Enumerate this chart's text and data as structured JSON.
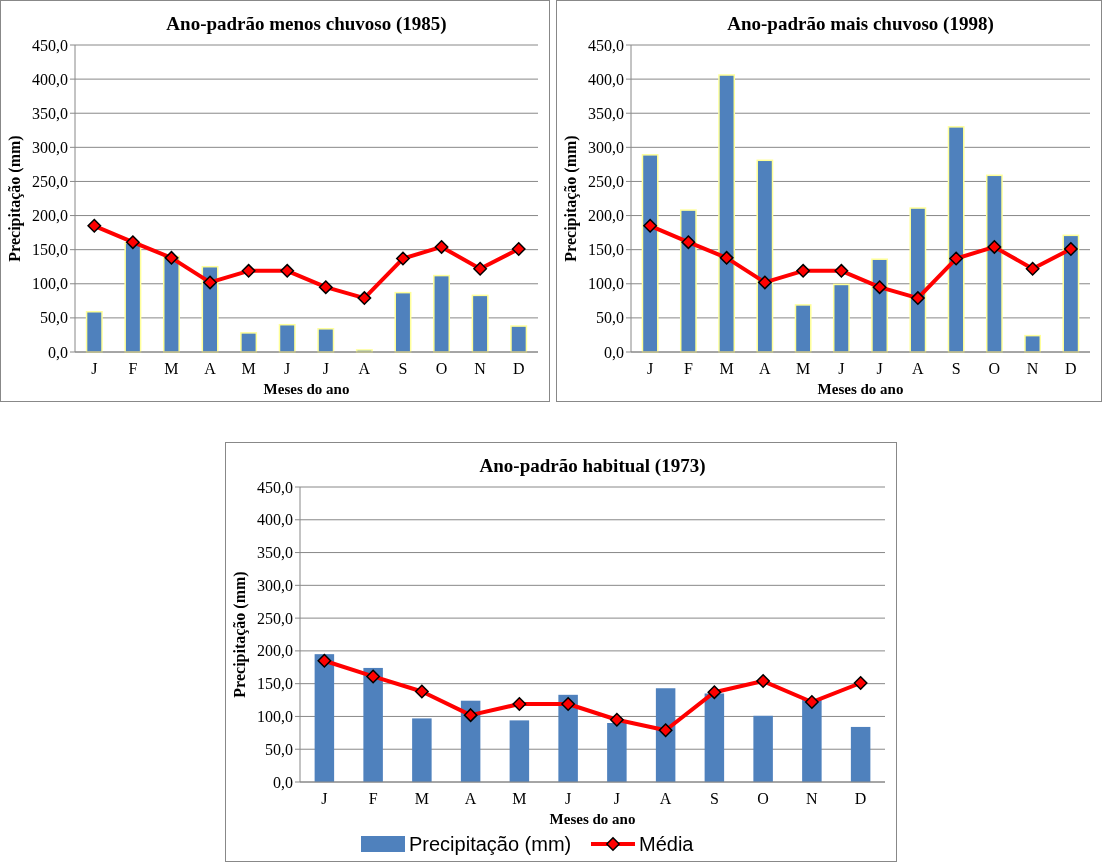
{
  "chart_data": [
    {
      "type": "bar",
      "title": "Ano-padrão menos chuvoso (1985)",
      "xlabel": "Meses do ano",
      "ylabel": "Precipitação (mm)",
      "categories": [
        "J",
        "F",
        "M",
        "A",
        "M",
        "J",
        "J",
        "A",
        "S",
        "O",
        "N",
        "D"
      ],
      "ylim": [
        0,
        450
      ],
      "yticks": [
        {
          "value": 0,
          "label": "0,0"
        },
        {
          "value": 50,
          "label": "50,0"
        },
        {
          "value": 100,
          "label": "100,0"
        },
        {
          "value": 150,
          "label": "150,0"
        },
        {
          "value": 200,
          "label": "200,0"
        },
        {
          "value": 250,
          "label": "250,0"
        },
        {
          "value": 300,
          "label": "300,0"
        },
        {
          "value": 350,
          "label": "350,0"
        },
        {
          "value": 400,
          "label": "400,0"
        },
        {
          "value": 450,
          "label": "450,0"
        }
      ],
      "grid": "y",
      "marker": "diamond",
      "legend": false,
      "series": [
        {
          "color": "#4f81bd",
          "values": [
            59,
            160,
            140,
            125,
            28,
            40,
            34,
            3,
            87,
            112,
            83,
            38
          ]
        },
        {
          "type": "line",
          "color": "#ff0000",
          "values": [
            185,
            161,
            138,
            102,
            119,
            119,
            95,
            79,
            137,
            154,
            122,
            151
          ]
        }
      ]
    },
    {
      "type": "bar",
      "title": "Ano-padrão mais chuvoso (1998)",
      "xlabel": "Meses do ano",
      "ylabel": "Precipitação (mm)",
      "categories": [
        "J",
        "F",
        "M",
        "A",
        "M",
        "J",
        "J",
        "A",
        "S",
        "O",
        "N",
        "D"
      ],
      "ylim": [
        0,
        450
      ],
      "yticks": [
        {
          "value": 0,
          "label": "0,0"
        },
        {
          "value": 50,
          "label": "50,0"
        },
        {
          "value": 100,
          "label": "100,0"
        },
        {
          "value": 150,
          "label": "150,0"
        },
        {
          "value": 200,
          "label": "200,0"
        },
        {
          "value": 250,
          "label": "250,0"
        },
        {
          "value": 300,
          "label": "300,0"
        },
        {
          "value": 350,
          "label": "350,0"
        },
        {
          "value": 400,
          "label": "400,0"
        },
        {
          "value": 450,
          "label": "450,0"
        }
      ],
      "grid": "y",
      "marker": "diamond",
      "legend": false,
      "series": [
        {
          "color": "#4f81bd",
          "values": [
            289,
            208,
            406,
            281,
            69,
            99,
            136,
            211,
            330,
            259,
            24,
            171
          ]
        },
        {
          "type": "line",
          "color": "#ff0000",
          "values": [
            185,
            161,
            138,
            102,
            119,
            119,
            95,
            79,
            137,
            154,
            122,
            151
          ]
        }
      ]
    },
    {
      "type": "bar",
      "title": "Ano-padrão habitual (1973)",
      "xlabel": "Meses do ano",
      "ylabel": "Precipitação (mm)",
      "categories": [
        "J",
        "F",
        "M",
        "A",
        "M",
        "J",
        "J",
        "A",
        "S",
        "O",
        "N",
        "D"
      ],
      "ylim": [
        0,
        450
      ],
      "yticks": [
        {
          "value": 0,
          "label": "0,0"
        },
        {
          "value": 50,
          "label": "50,0"
        },
        {
          "value": 100,
          "label": "100,0"
        },
        {
          "value": 150,
          "label": "150,0"
        },
        {
          "value": 200,
          "label": "200,0"
        },
        {
          "value": 250,
          "label": "250,0"
        },
        {
          "value": 300,
          "label": "300,0"
        },
        {
          "value": 350,
          "label": "350,0"
        },
        {
          "value": 400,
          "label": "400,0"
        },
        {
          "value": 450,
          "label": "450,0"
        }
      ],
      "grid": "y",
      "marker": "diamond",
      "legend": "bottom",
      "series": [
        {
          "name": "Precipitação (mm)",
          "color": "#4f81bd",
          "values": [
            195,
            174,
            97,
            124,
            94,
            133,
            90,
            143,
            135,
            101,
            125,
            84
          ]
        },
        {
          "type": "line",
          "name": "Média",
          "color": "#ff0000",
          "values": [
            185,
            161,
            138,
            102,
            119,
            119,
            95,
            79,
            137,
            154,
            122,
            151
          ]
        }
      ]
    }
  ]
}
